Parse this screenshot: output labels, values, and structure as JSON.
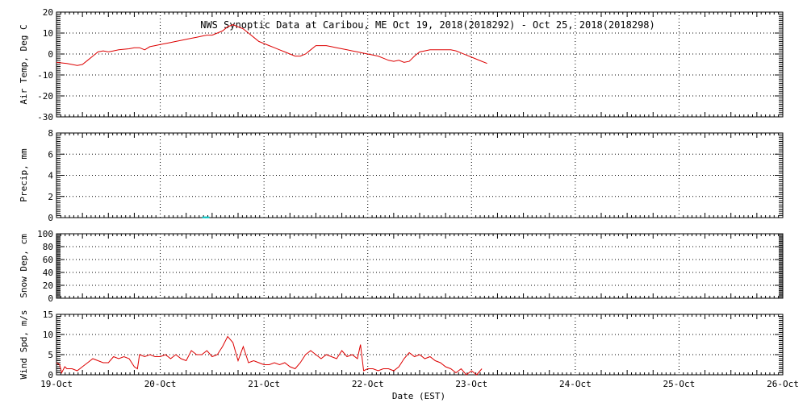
{
  "title": "NWS Synoptic Data at Caribou, ME   Oct 19, 2018(2018292) - Oct 25, 2018(2018298)",
  "x_axis": {
    "label": "Date (EST)",
    "ticks": [
      "19-Oct",
      "20-Oct",
      "21-Oct",
      "22-Oct",
      "23-Oct",
      "24-Oct",
      "25-Oct",
      "26-Oct"
    ]
  },
  "colors": {
    "series": "#dd0000",
    "precip": "#00c0c0",
    "axes": "#000000"
  },
  "chart_data": [
    {
      "type": "line",
      "ylabel": "Air Temp, Deg C",
      "ylim": [
        -30,
        20
      ],
      "yticks": [
        -30,
        -20,
        -10,
        0,
        10,
        20
      ],
      "x_unit": "days since 19-Oct 00:00 EST",
      "points": [
        [
          0,
          -4
        ],
        [
          0.1,
          -4.5
        ],
        [
          0.2,
          -5.5
        ],
        [
          0.25,
          -5
        ],
        [
          0.3,
          -3
        ],
        [
          0.35,
          -1
        ],
        [
          0.4,
          1
        ],
        [
          0.45,
          1.5
        ],
        [
          0.5,
          1
        ],
        [
          0.55,
          1.5
        ],
        [
          0.6,
          2
        ],
        [
          0.7,
          2.5
        ],
        [
          0.75,
          3
        ],
        [
          0.8,
          3
        ],
        [
          0.85,
          2
        ],
        [
          0.9,
          3.5
        ],
        [
          0.95,
          4
        ],
        [
          1.0,
          4.5
        ],
        [
          1.05,
          5
        ],
        [
          1.1,
          5.5
        ],
        [
          1.15,
          6
        ],
        [
          1.2,
          6.5
        ],
        [
          1.25,
          7
        ],
        [
          1.3,
          7.5
        ],
        [
          1.35,
          8
        ],
        [
          1.4,
          8.5
        ],
        [
          1.45,
          9
        ],
        [
          1.5,
          9
        ],
        [
          1.55,
          10
        ],
        [
          1.6,
          11
        ],
        [
          1.65,
          13
        ],
        [
          1.7,
          14
        ],
        [
          1.75,
          13
        ],
        [
          1.8,
          12
        ],
        [
          1.85,
          10
        ],
        [
          1.9,
          8
        ],
        [
          1.95,
          6
        ],
        [
          2.0,
          5
        ],
        [
          2.05,
          4
        ],
        [
          2.1,
          3
        ],
        [
          2.15,
          2
        ],
        [
          2.2,
          1
        ],
        [
          2.25,
          0
        ],
        [
          2.3,
          -1
        ],
        [
          2.35,
          -1
        ],
        [
          2.4,
          0
        ],
        [
          2.45,
          2
        ],
        [
          2.5,
          4
        ],
        [
          2.55,
          4
        ],
        [
          2.6,
          4
        ],
        [
          2.65,
          3.5
        ],
        [
          2.7,
          3
        ],
        [
          2.75,
          2.5
        ],
        [
          2.8,
          2
        ],
        [
          2.85,
          1.5
        ],
        [
          2.9,
          1
        ],
        [
          2.95,
          0.5
        ],
        [
          3.0,
          0
        ],
        [
          3.05,
          -0.5
        ],
        [
          3.1,
          -1
        ],
        [
          3.15,
          -2
        ],
        [
          3.2,
          -3
        ],
        [
          3.25,
          -3.5
        ],
        [
          3.3,
          -3
        ],
        [
          3.35,
          -4
        ],
        [
          3.4,
          -3.5
        ],
        [
          3.45,
          -1
        ],
        [
          3.5,
          1
        ],
        [
          3.55,
          1.5
        ],
        [
          3.6,
          2
        ],
        [
          3.65,
          2
        ],
        [
          3.7,
          2
        ],
        [
          3.75,
          2
        ],
        [
          3.8,
          2
        ],
        [
          3.85,
          1.5
        ],
        [
          3.9,
          0.5
        ],
        [
          3.95,
          -0.5
        ],
        [
          4.0,
          -1.5
        ],
        [
          4.05,
          -2.5
        ],
        [
          4.1,
          -3.5
        ],
        [
          4.15,
          -4.5
        ]
      ]
    },
    {
      "type": "bar",
      "ylabel": "Precip, mm",
      "ylim": [
        0,
        8
      ],
      "yticks": [
        0,
        2,
        4,
        6,
        8
      ],
      "x_unit": "days since 19-Oct 00:00 EST",
      "bars": [
        [
          1.42,
          0.1
        ],
        [
          1.45,
          0.1
        ]
      ]
    },
    {
      "type": "line",
      "ylabel": "Snow Dep, cm",
      "ylim": [
        0,
        100
      ],
      "yticks": [
        0,
        20,
        40,
        60,
        80,
        100
      ],
      "points": []
    },
    {
      "type": "line",
      "ylabel": "Wind Spd, m/s",
      "ylim": [
        0,
        15
      ],
      "yticks": [
        0,
        5,
        10,
        15
      ],
      "x_unit": "days since 19-Oct 00:00 EST",
      "points": [
        [
          0,
          3
        ],
        [
          0.03,
          2.5
        ],
        [
          0.05,
          0.5
        ],
        [
          0.08,
          2
        ],
        [
          0.1,
          1.5
        ],
        [
          0.15,
          1.5
        ],
        [
          0.2,
          1
        ],
        [
          0.25,
          2
        ],
        [
          0.3,
          3
        ],
        [
          0.35,
          4
        ],
        [
          0.4,
          3.5
        ],
        [
          0.45,
          3
        ],
        [
          0.5,
          3
        ],
        [
          0.55,
          4.5
        ],
        [
          0.6,
          4
        ],
        [
          0.65,
          4.5
        ],
        [
          0.7,
          4
        ],
        [
          0.75,
          2
        ],
        [
          0.78,
          1.5
        ],
        [
          0.8,
          5
        ],
        [
          0.85,
          4.5
        ],
        [
          0.9,
          5
        ],
        [
          0.95,
          4.5
        ],
        [
          1.0,
          4.5
        ],
        [
          1.05,
          5
        ],
        [
          1.1,
          4
        ],
        [
          1.15,
          5
        ],
        [
          1.2,
          4
        ],
        [
          1.25,
          3.5
        ],
        [
          1.3,
          6
        ],
        [
          1.35,
          5
        ],
        [
          1.4,
          5
        ],
        [
          1.45,
          6
        ],
        [
          1.5,
          4.5
        ],
        [
          1.55,
          5
        ],
        [
          1.6,
          7
        ],
        [
          1.65,
          9.5
        ],
        [
          1.7,
          8
        ],
        [
          1.75,
          3.5
        ],
        [
          1.8,
          7
        ],
        [
          1.85,
          3
        ],
        [
          1.9,
          3.5
        ],
        [
          1.95,
          3
        ],
        [
          2.0,
          2.5
        ],
        [
          2.05,
          2.5
        ],
        [
          2.1,
          3
        ],
        [
          2.15,
          2.5
        ],
        [
          2.2,
          3
        ],
        [
          2.25,
          2
        ],
        [
          2.3,
          1.5
        ],
        [
          2.35,
          3
        ],
        [
          2.4,
          5
        ],
        [
          2.45,
          6
        ],
        [
          2.5,
          5
        ],
        [
          2.55,
          4
        ],
        [
          2.6,
          5
        ],
        [
          2.65,
          4.5
        ],
        [
          2.7,
          4
        ],
        [
          2.75,
          6
        ],
        [
          2.8,
          4.5
        ],
        [
          2.85,
          5
        ],
        [
          2.9,
          4
        ],
        [
          2.93,
          7.5
        ],
        [
          2.96,
          1
        ],
        [
          3.0,
          1.5
        ],
        [
          3.05,
          1.5
        ],
        [
          3.1,
          1
        ],
        [
          3.15,
          1.5
        ],
        [
          3.2,
          1.5
        ],
        [
          3.25,
          1
        ],
        [
          3.3,
          2
        ],
        [
          3.35,
          4
        ],
        [
          3.4,
          5.5
        ],
        [
          3.45,
          4.5
        ],
        [
          3.5,
          5
        ],
        [
          3.55,
          4
        ],
        [
          3.6,
          4.5
        ],
        [
          3.65,
          3.5
        ],
        [
          3.7,
          3
        ],
        [
          3.75,
          2
        ],
        [
          3.8,
          1.5
        ],
        [
          3.85,
          0.5
        ],
        [
          3.9,
          1.5
        ],
        [
          3.95,
          0
        ],
        [
          4.0,
          1
        ],
        [
          4.05,
          0
        ],
        [
          4.1,
          1.5
        ]
      ]
    }
  ]
}
